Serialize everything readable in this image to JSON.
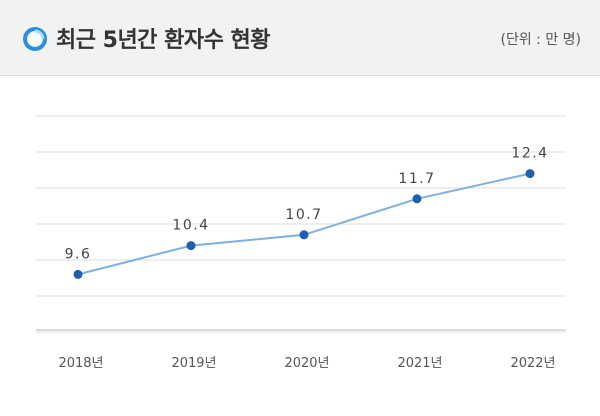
{
  "header": {
    "title": "최근 5년간 환자수 현황",
    "unit": "(단위 : 만 명)",
    "icon": "ring-icon"
  },
  "colors": {
    "header_bg": "#f2f2f2",
    "line": "#7fb0e0",
    "point": "#1f5fae",
    "grid": "#dedede",
    "icon_outer": "#2a8fe0",
    "icon_inner": "#a6e0f7"
  },
  "chart_data": {
    "type": "line",
    "title": "최근 5년간 환자수 현황",
    "unit": "(단위 : 만 명)",
    "categories": [
      "2018년",
      "2019년",
      "2020년",
      "2021년",
      "2022년"
    ],
    "values": [
      9.6,
      10.4,
      10.7,
      11.7,
      12.4
    ],
    "value_labels": [
      "9.6",
      "10.4",
      "10.7",
      "11.7",
      "12.4"
    ],
    "ylim": [
      8,
      14
    ],
    "grid": true,
    "legend": "none"
  }
}
